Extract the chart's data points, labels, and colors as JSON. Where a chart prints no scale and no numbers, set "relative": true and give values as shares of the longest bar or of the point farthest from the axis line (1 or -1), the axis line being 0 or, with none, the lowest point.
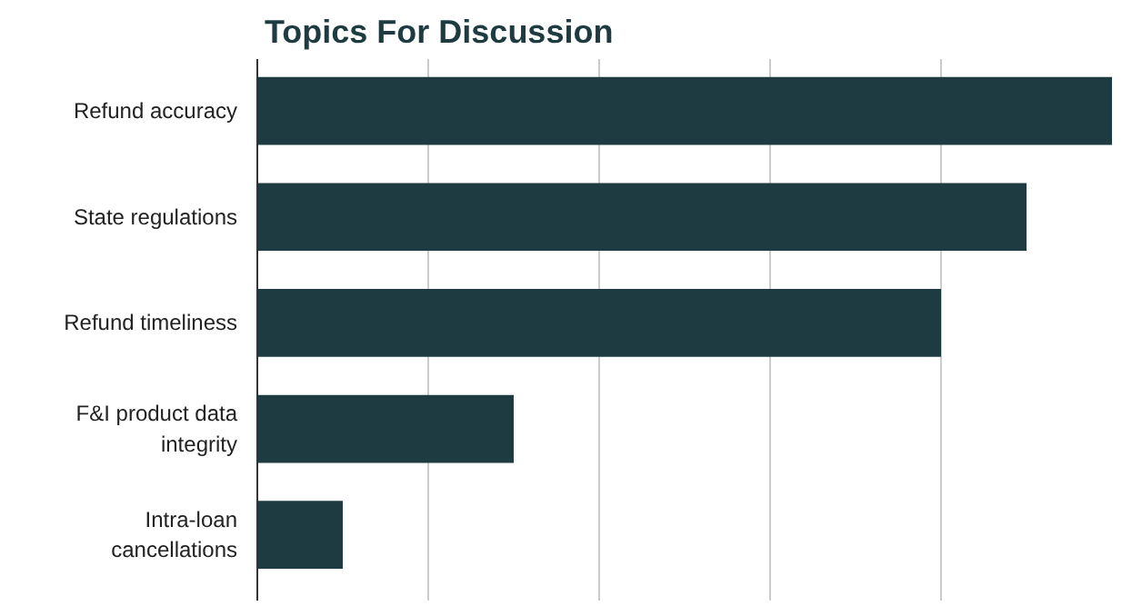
{
  "chart_data": {
    "type": "bar",
    "title": "Topics For Discussion",
    "orientation": "horizontal",
    "relative": true,
    "grid": "x",
    "color": "#1d3b40",
    "categories": [
      "Refund accuracy",
      "State regulations",
      "Refund timeliness",
      "F&I product data integrity",
      "Intra-loan cancellations"
    ],
    "values": [
      1,
      0.9,
      0.8,
      0.3,
      0.1
    ]
  }
}
